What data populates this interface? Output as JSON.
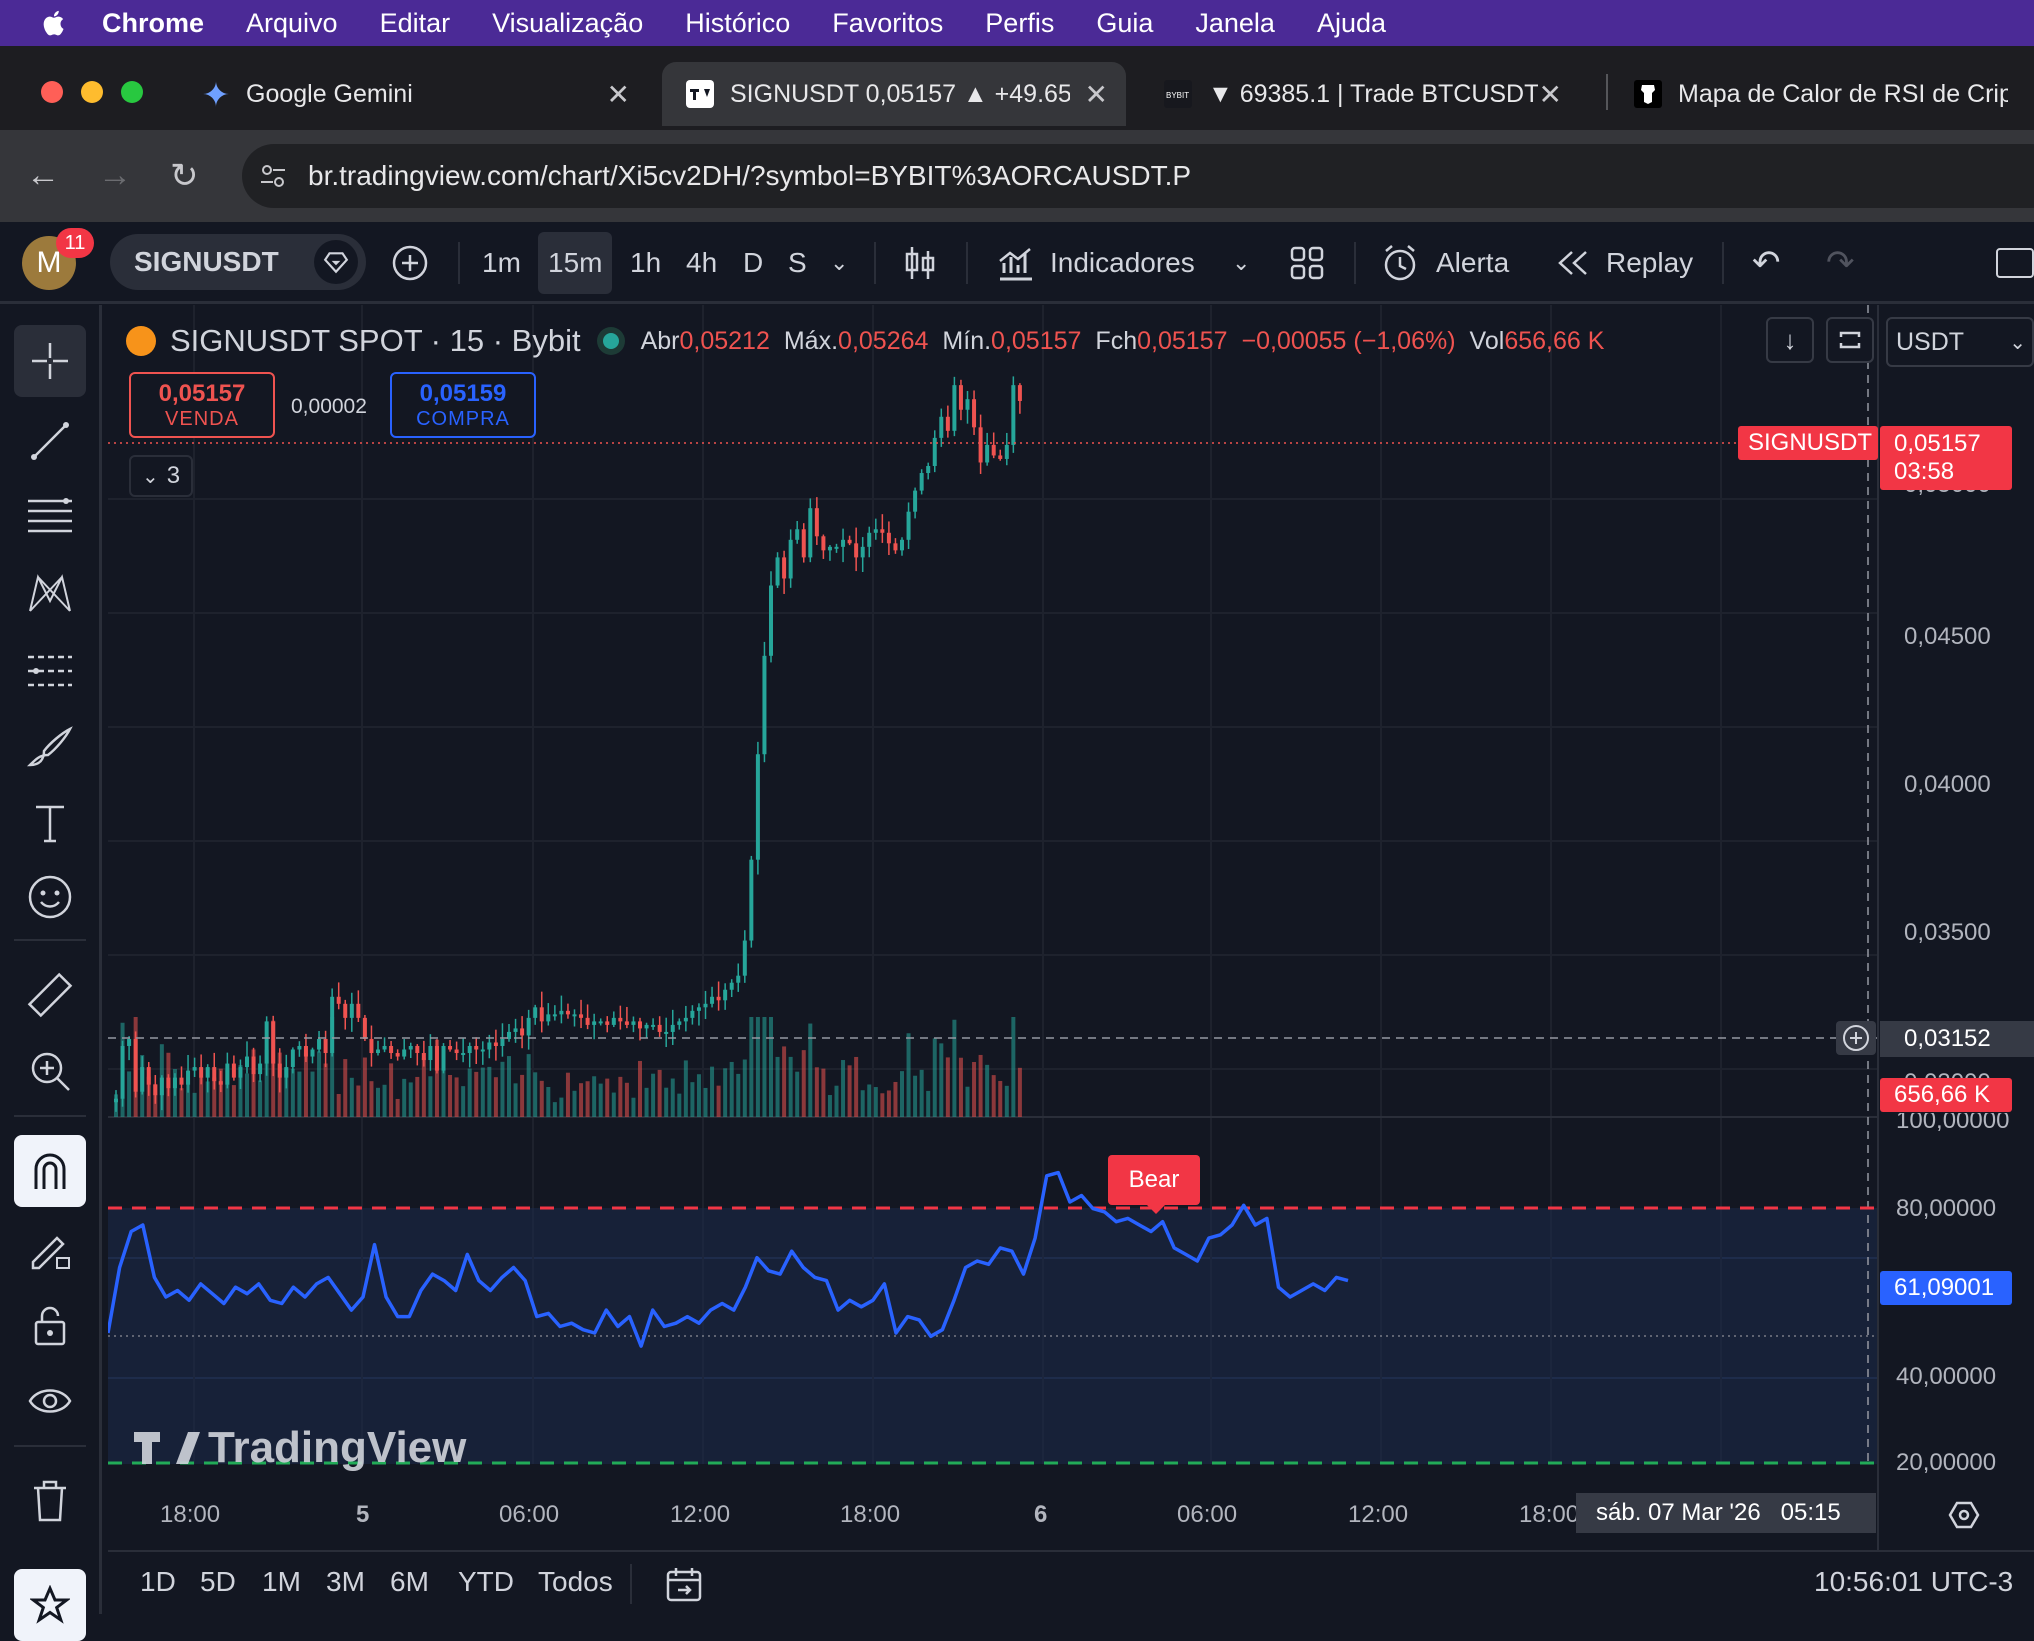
{
  "menubar": {
    "app": "Chrome",
    "items": [
      "Arquivo",
      "Editar",
      "Visualização",
      "Histórico",
      "Favoritos",
      "Perfis",
      "Guia",
      "Janela",
      "Ajuda"
    ]
  },
  "tabs": [
    {
      "title": "Google Gemini",
      "icon": "gemini-icon"
    },
    {
      "title": "SIGNUSDT 0,05157 ▲ +49.65",
      "icon": "tradingview-icon",
      "active": true
    },
    {
      "title": "▼ 69385.1 | Trade BTCUSDT |",
      "icon": "bybit-icon"
    },
    {
      "title": "Mapa de Calor de RSI de Crip",
      "icon": "shield-icon"
    }
  ],
  "address": {
    "url": "br.tradingview.com/chart/Xi5cv2DH/?symbol=BYBIT%3AORCAUSDT.P"
  },
  "toolbar": {
    "avatar_letter": "M",
    "notif_count": "11",
    "symbol": "SIGNUSDT",
    "intervals": [
      "1m",
      "15m",
      "1h",
      "4h",
      "D",
      "S"
    ],
    "active_interval": "15m",
    "indicators": "Indicadores",
    "alert": "Alerta",
    "replay": "Replay"
  },
  "legend": {
    "title": "SIGNUSDT SPOT · 15 · Bybit",
    "open_label": "Abr",
    "open": "0,05212",
    "high_label": "Máx.",
    "high": "0,05264",
    "low_label": "Mín.",
    "low": "0,05157",
    "close_label": "Fch",
    "close": "0,05157",
    "change": "−0,00055 (−1,06%)",
    "vol_label": "Vol",
    "vol": "656,66 K",
    "sell_price": "0,05157",
    "sell_label": "VENDA",
    "spread": "0,00002",
    "buy_price": "0,05159",
    "buy_label": "COMPRA",
    "collapse_count": "3",
    "currency": "USDT"
  },
  "price_axis": {
    "ticks": [
      "0,04500",
      "0,04000",
      "0,03500"
    ],
    "hidden_tick": "0,05000",
    "hidden_tick_low": "0,03000",
    "symbol_badge": "SIGNUSDT",
    "last_price": "0,05157",
    "countdown": "03:58",
    "crosshair_price": "0,03152",
    "volume_badge": "656,66 K"
  },
  "rsi_axis": {
    "ticks": [
      "100,00000",
      "80,00000",
      "40,00000",
      "20,00000"
    ],
    "value": "61,09001",
    "bear_label": "Bear"
  },
  "time_axis": {
    "labels": [
      "18:00",
      "5",
      "06:00",
      "12:00",
      "18:00",
      "6",
      "06:00",
      "12:00",
      "18:00"
    ],
    "crosshair": "sáb. 07 Mar '26   05:15"
  },
  "watermark": "TradingView",
  "bottom": {
    "ranges": [
      "1D",
      "5D",
      "1M",
      "3M",
      "6M",
      "YTD",
      "Todos"
    ],
    "clock": "10:56:01 UTC-3"
  },
  "colors": {
    "up": "#26a69a",
    "down": "#ef5350",
    "rsi": "#2962ff",
    "accent_menubar": "#4b2a96"
  },
  "chart_data": {
    "type": "candlestick",
    "interval": "15",
    "price_ylim": [
      0.0312,
      0.0543
    ],
    "rsi_ylim": [
      5,
      107
    ],
    "rsi_bands": [
      20,
      50,
      80
    ],
    "volume_last": "656,66 K",
    "ohlc_anchor_close": [
      0.03172,
      0.03322,
      0.03342,
      0.03192,
      0.03262,
      0.03212,
      0.03182,
      0.03232,
      0.03202,
      0.03232,
      0.03212,
      0.03252,
      0.03262,
      0.03232,
      0.03262,
      0.03222,
      0.03212,
      0.03272,
      0.03232,
      0.03262,
      0.03292,
      0.03242,
      0.03272,
      0.03392,
      0.03272,
      0.03232,
      0.03262,
      0.03312,
      0.03322,
      0.03292,
      0.03312,
      0.03342,
      0.03302,
      0.03462,
      0.03442,
      0.03402,
      0.03442,
      0.03402,
      0.03342,
      0.03302,
      0.03312,
      0.03322,
      0.03302,
      0.03292,
      0.03312,
      0.03322,
      0.03302,
      0.03282,
      0.03322,
      0.03252,
      0.03322,
      0.03312,
      0.03302,
      0.03302,
      0.03322,
      0.03312,
      0.03312,
      0.03332,
      0.03322,
      0.03342,
      0.03362,
      0.03372,
      0.03352,
      0.03402,
      0.03432,
      0.03392,
      0.03412,
      0.03412,
      0.03422,
      0.03412,
      0.03412,
      0.03402,
      0.03382,
      0.03392,
      0.03392,
      0.03382,
      0.03402,
      0.03392,
      0.03382,
      0.03392,
      0.03372,
      0.03382,
      0.03382,
      0.03362,
      0.03362,
      0.03382,
      0.03392,
      0.03402,
      0.03422,
      0.03432,
      0.03442,
      0.03462,
      0.03452,
      0.03482,
      0.03502,
      0.03522,
      0.03622,
      0.03852,
      0.04152,
      0.04432,
      0.04632,
      0.04712,
      0.04652,
      0.04762,
      0.04792,
      0.04712,
      0.04852,
      0.04772,
      0.04732,
      0.04742,
      0.04742,
      0.04762,
      0.04752,
      0.04712,
      0.04742,
      0.04782,
      0.04792,
      0.04782,
      0.04752,
      0.04732,
      0.04762,
      0.04842,
      0.04902,
      0.04952,
      0.04972,
      0.05052,
      0.05112,
      0.05072,
      0.05202,
      0.05132,
      0.05162,
      0.05082,
      0.04982,
      0.05032,
      0.05002,
      0.04992,
      0.05032,
      0.05202,
      0.05157
    ],
    "rsi_anchor_values": [
      45,
      65,
      76,
      78,
      62,
      56,
      58,
      55,
      60,
      57,
      54,
      59,
      57,
      60,
      55,
      54,
      59,
      56,
      60,
      62,
      57,
      52,
      56,
      72,
      56,
      50,
      50,
      58,
      63,
      61,
      58,
      69,
      61,
      58,
      62,
      65,
      61,
      50,
      51,
      47,
      48,
      46,
      45,
      52,
      47,
      50,
      41,
      52,
      47,
      48,
      50,
      48,
      52,
      54,
      52,
      59,
      68,
      64,
      63,
      70,
      65,
      62,
      61,
      52,
      55,
      53,
      55,
      60,
      45,
      50,
      49,
      44,
      46,
      55,
      65,
      67,
      66,
      71,
      70,
      63,
      74,
      93,
      94,
      85,
      87,
      83,
      82,
      79,
      80,
      78,
      76,
      79,
      71,
      69,
      67,
      74,
      75,
      78,
      84,
      78,
      80,
      59,
      56,
      58,
      60,
      58,
      62,
      61
    ]
  }
}
